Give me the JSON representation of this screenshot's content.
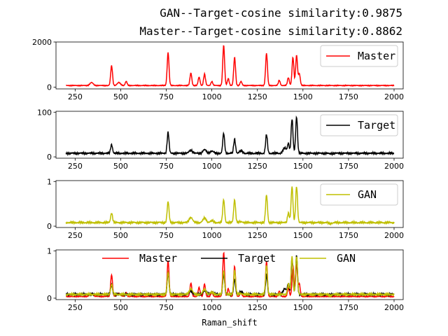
{
  "title_line1": "GAN--Target-cosine similarity:0.9875",
  "title_line2": "Master--Target-cosine similarity:0.8862",
  "chart_data": [
    {
      "type": "line",
      "xlim": [
        145,
        2050
      ],
      "ylim": [
        -80,
        2000
      ],
      "xticks": [
        250,
        500,
        750,
        1000,
        1250,
        1500,
        1750,
        2000
      ],
      "yticks": [
        0,
        2000
      ],
      "legend": {
        "position": "upper-right"
      },
      "series": [
        {
          "name": "Master",
          "color": "#ff0000",
          "baseline": 70,
          "peaks": [
            [
              340,
              200
            ],
            [
              450,
              950
            ],
            [
              490,
              200
            ],
            [
              530,
              250
            ],
            [
              760,
              1530
            ],
            [
              885,
              620
            ],
            [
              930,
              440
            ],
            [
              960,
              580
            ],
            [
              1000,
              250
            ],
            [
              1065,
              1850
            ],
            [
              1090,
              380
            ],
            [
              1125,
              1320
            ],
            [
              1160,
              250
            ],
            [
              1300,
              1500
            ],
            [
              1370,
              300
            ],
            [
              1420,
              420
            ],
            [
              1445,
              1320
            ],
            [
              1465,
              1400
            ],
            [
              1480,
              600
            ]
          ]
        }
      ]
    },
    {
      "type": "line",
      "xlim": [
        145,
        2050
      ],
      "ylim": [
        -3,
        102
      ],
      "xticks": [
        250,
        500,
        750,
        1000,
        1250,
        1500,
        1750,
        2000
      ],
      "yticks": [
        0,
        100
      ],
      "legend": {
        "position": "upper-right"
      },
      "series": [
        {
          "name": "Target",
          "color": "#000000",
          "baseline": 8,
          "peaks": [
            [
              450,
              28
            ],
            [
              760,
              55
            ],
            [
              885,
              15
            ],
            [
              960,
              16
            ],
            [
              1000,
              13
            ],
            [
              1065,
              53
            ],
            [
              1125,
              40
            ],
            [
              1160,
              13
            ],
            [
              1300,
              50
            ],
            [
              1400,
              20
            ],
            [
              1420,
              30
            ],
            [
              1440,
              85
            ],
            [
              1465,
              90
            ],
            [
              1650,
              7
            ]
          ]
        }
      ]
    },
    {
      "type": "line",
      "xlim": [
        145,
        2050
      ],
      "ylim": [
        -0.03,
        1.02
      ],
      "xticks": [
        250,
        500,
        750,
        1000,
        1250,
        1500,
        1750,
        2000
      ],
      "yticks": [
        0,
        1
      ],
      "legend": {
        "position": "upper-right"
      },
      "series": [
        {
          "name": "GAN",
          "color": "#bfbf00",
          "baseline": 0.08,
          "peaks": [
            [
              450,
              0.3
            ],
            [
              760,
              0.55
            ],
            [
              885,
              0.2
            ],
            [
              960,
              0.18
            ],
            [
              1000,
              0.12
            ],
            [
              1065,
              0.6
            ],
            [
              1125,
              0.6
            ],
            [
              1160,
              0.1
            ],
            [
              1300,
              0.7
            ],
            [
              1420,
              0.3
            ],
            [
              1440,
              0.88
            ],
            [
              1465,
              0.9
            ],
            [
              1650,
              0.06
            ]
          ]
        }
      ]
    },
    {
      "type": "line",
      "xlim": [
        145,
        2050
      ],
      "ylim": [
        -0.03,
        1.02
      ],
      "xticks": [
        250,
        500,
        750,
        1000,
        1250,
        1500,
        1750,
        2000
      ],
      "yticks": [
        0,
        1
      ],
      "xlabel": "Raman_shift",
      "legend": {
        "position": "upper-center",
        "ncol": 3
      },
      "series": [
        {
          "name": "Master",
          "color": "#ff0000",
          "baseline": 0.035,
          "peaks": [
            [
              340,
              0.1
            ],
            [
              450,
              0.5
            ],
            [
              490,
              0.1
            ],
            [
              530,
              0.12
            ],
            [
              760,
              0.8
            ],
            [
              885,
              0.32
            ],
            [
              930,
              0.23
            ],
            [
              960,
              0.3
            ],
            [
              1000,
              0.13
            ],
            [
              1065,
              0.97
            ],
            [
              1090,
              0.2
            ],
            [
              1125,
              0.68
            ],
            [
              1160,
              0.13
            ],
            [
              1300,
              0.78
            ],
            [
              1370,
              0.15
            ],
            [
              1420,
              0.22
            ],
            [
              1445,
              0.68
            ],
            [
              1465,
              0.72
            ],
            [
              1480,
              0.3
            ]
          ]
        },
        {
          "name": "Target",
          "color": "#000000",
          "baseline": 0.08,
          "peaks": [
            [
              450,
              0.28
            ],
            [
              760,
              0.55
            ],
            [
              885,
              0.15
            ],
            [
              960,
              0.16
            ],
            [
              1000,
              0.13
            ],
            [
              1065,
              0.53
            ],
            [
              1125,
              0.4
            ],
            [
              1160,
              0.13
            ],
            [
              1300,
              0.5
            ],
            [
              1400,
              0.2
            ],
            [
              1420,
              0.3
            ],
            [
              1440,
              0.85
            ],
            [
              1465,
              0.9
            ],
            [
              1650,
              0.07
            ]
          ]
        },
        {
          "name": "GAN",
          "color": "#bfbf00",
          "baseline": 0.08,
          "peaks": [
            [
              450,
              0.3
            ],
            [
              760,
              0.55
            ],
            [
              885,
              0.2
            ],
            [
              960,
              0.18
            ],
            [
              1000,
              0.12
            ],
            [
              1065,
              0.6
            ],
            [
              1125,
              0.6
            ],
            [
              1160,
              0.1
            ],
            [
              1300,
              0.7
            ],
            [
              1420,
              0.3
            ],
            [
              1440,
              0.88
            ],
            [
              1465,
              0.9
            ],
            [
              1650,
              0.06
            ]
          ]
        }
      ]
    }
  ]
}
